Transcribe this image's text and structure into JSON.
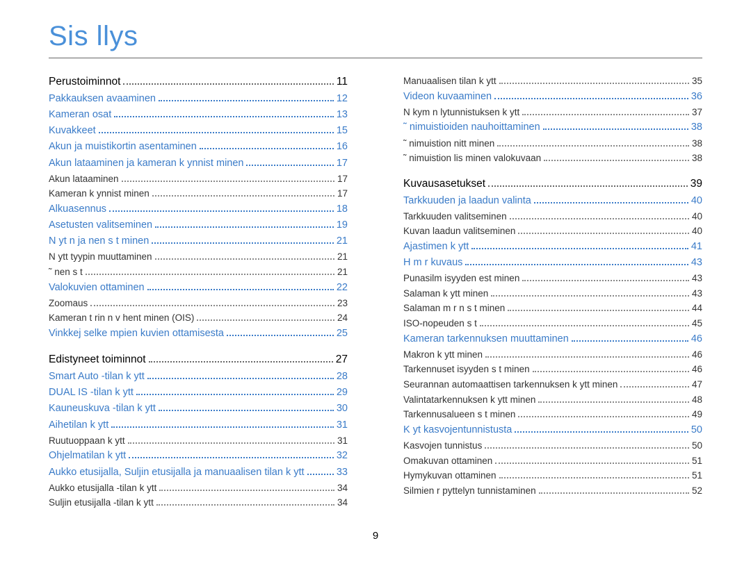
{
  "title": "Sis llys",
  "page_number": "9",
  "colors": {
    "link": "#3a7bc8",
    "title": "#4a90d9",
    "text": "#333333",
    "heading": "#000000"
  },
  "left": [
    {
      "level": 0,
      "label": "Perustoiminnot",
      "page": "11"
    },
    {
      "level": 1,
      "label": "Pakkauksen avaaminen",
      "page": "12"
    },
    {
      "level": 1,
      "label": "Kameran osat",
      "page": "13"
    },
    {
      "level": 1,
      "label": "Kuvakkeet",
      "page": "15"
    },
    {
      "level": 1,
      "label": "Akun ja muistikortin asentaminen",
      "page": "16"
    },
    {
      "level": 1,
      "label": "Akun lataaminen ja kameran k ynnist minen",
      "page": "17"
    },
    {
      "level": 2,
      "label": "Akun lataaminen",
      "page": "17"
    },
    {
      "level": 2,
      "label": "Kameran k ynnist minen",
      "page": "17"
    },
    {
      "level": 1,
      "label": "Alkuasennus",
      "page": "18"
    },
    {
      "level": 1,
      "label": "Asetusten valitseminen",
      "page": "19"
    },
    {
      "level": 1,
      "label": "N yt n ja   nen s  t minen",
      "page": "21"
    },
    {
      "level": 2,
      "label": "N ytt tyypin muuttaminen",
      "page": "21"
    },
    {
      "level": 2,
      "label": "˜ nen s  t",
      "page": "21"
    },
    {
      "level": 1,
      "label": "Valokuvien ottaminen",
      "page": "22"
    },
    {
      "level": 2,
      "label": "Zoomaus",
      "page": "23"
    },
    {
      "level": 2,
      "label": "Kameran t rin n v hent minen (OIS)",
      "page": "24"
    },
    {
      "level": 1,
      "label": "Vinkkej  selke mpien kuvien ottamisesta",
      "page": "25"
    },
    {
      "level": 0,
      "label": "Edistyneet toiminnot",
      "page": "27"
    },
    {
      "level": 1,
      "label": "Smart Auto -tilan k ytt",
      "page": "28"
    },
    {
      "level": 1,
      "label": "DUAL IS -tilan k ytt",
      "page": "29"
    },
    {
      "level": 1,
      "label": "Kauneuskuva -tilan k ytt",
      "page": "30"
    },
    {
      "level": 1,
      "label": "Aihetilan k ytt",
      "page": "31"
    },
    {
      "level": 2,
      "label": "Ruutuoppaan k ytt",
      "page": "31"
    },
    {
      "level": 1,
      "label": "Ohjelmatilan k ytt",
      "page": "32"
    },
    {
      "level": 1,
      "label": "Aukko etusijalla, Suljin etusijalla ja manuaalisen tilan k ytt",
      "page": "33"
    },
    {
      "level": 2,
      "label": "Aukko etusijalla -tilan k ytt",
      "page": "34"
    },
    {
      "level": 2,
      "label": "Suljin etusijalla -tilan k ytt",
      "page": "34"
    }
  ],
  "right": [
    {
      "level": 2,
      "label": "Manuaalisen tilan k ytt",
      "page": "35"
    },
    {
      "level": 1,
      "label": "Videon kuvaaminen",
      "page": "36"
    },
    {
      "level": 2,
      "label": "N kym n lytunnistuksen k ytt",
      "page": "37"
    },
    {
      "level": 1,
      "label": "˜ nimuistioiden nauhoittaminen",
      "page": "38"
    },
    {
      "level": 2,
      "label": "˜ nimuistion  nitt minen",
      "page": "38"
    },
    {
      "level": 2,
      "label": "˜ nimuistion lis  minen valokuvaan",
      "page": "38"
    },
    {
      "level": 0,
      "label": "Kuvausasetukset",
      "page": "39"
    },
    {
      "level": 1,
      "label": "Tarkkuuden ja laadun valinta",
      "page": "40"
    },
    {
      "level": 2,
      "label": "Tarkkuuden valitseminen",
      "page": "40"
    },
    {
      "level": 2,
      "label": "Kuvan laadun valitseminen",
      "page": "40"
    },
    {
      "level": 1,
      "label": "Ajastimen k ytt",
      "page": "41"
    },
    {
      "level": 1,
      "label": "H m r kuvaus",
      "page": "43"
    },
    {
      "level": 2,
      "label": "Punasilm isyyden est minen",
      "page": "43"
    },
    {
      "level": 2,
      "label": "Salaman k ytt minen",
      "page": "43"
    },
    {
      "level": 2,
      "label": "Salaman m  r n s  t minen",
      "page": "44"
    },
    {
      "level": 2,
      "label": "ISO-nopeuden s  t",
      "page": "45"
    },
    {
      "level": 1,
      "label": "Kameran tarkennuksen muuttaminen",
      "page": "46"
    },
    {
      "level": 2,
      "label": "Makron k ytt minen",
      "page": "46"
    },
    {
      "level": 2,
      "label": "Tarkennuset isyyden s  t minen",
      "page": "46"
    },
    {
      "level": 2,
      "label": "Seurannan automaattisen tarkennuksen k ytt minen",
      "page": "47"
    },
    {
      "level": 2,
      "label": "Valintatarkennuksen k ytt minen",
      "page": "48"
    },
    {
      "level": 2,
      "label": "Tarkennusalueen s  t minen",
      "page": "49"
    },
    {
      "level": 1,
      "label": "K yt  kasvojentunnistusta",
      "page": "50"
    },
    {
      "level": 2,
      "label": "Kasvojen tunnistus",
      "page": "50"
    },
    {
      "level": 2,
      "label": "Omakuvan ottaminen",
      "page": "51"
    },
    {
      "level": 2,
      "label": "Hymykuvan ottaminen",
      "page": "51"
    },
    {
      "level": 2,
      "label": "Silmien r pyttelyn tunnistaminen",
      "page": "52"
    }
  ]
}
